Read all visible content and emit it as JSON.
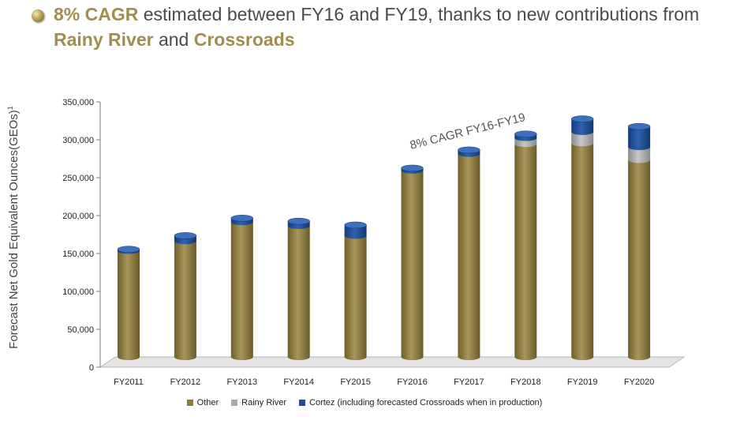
{
  "title": {
    "highlight1": "8% CAGR",
    "text1": " estimated between FY16 and FY19, thanks to new contributions from ",
    "highlight2": "Rainy River",
    "text2": " and ",
    "highlight3": "Crossroads"
  },
  "icons": {
    "bullet": "gold-sphere-bullet-icon"
  },
  "colors": {
    "accent": "#a18d4e",
    "other": "#8f7c3f",
    "rainy_river": "#a8a8a8",
    "cortez": "#1f4e94"
  },
  "chart_data": {
    "type": "bar",
    "stacked": true,
    "three_d": true,
    "categories": [
      "FY2011",
      "FY2012",
      "FY2013",
      "FY2014",
      "FY2015",
      "FY2016",
      "FY2017",
      "FY2018",
      "FY2019",
      "FY2020"
    ],
    "series": [
      {
        "name": "Other",
        "values": [
          140000,
          153000,
          178000,
          173000,
          160000,
          246000,
          268000,
          281000,
          282000,
          260000
        ]
      },
      {
        "name": "Rainy River",
        "values": [
          0,
          0,
          0,
          0,
          0,
          0,
          0,
          8000,
          15000,
          17000
        ]
      },
      {
        "name": "Cortez (including forecasted Crossroads when in production)",
        "values": [
          2000,
          7000,
          5000,
          6000,
          14000,
          3000,
          5000,
          5000,
          17000,
          27000
        ]
      }
    ],
    "ylabel": "Forecast Net Gold Equivalent Ounces(GEOs)",
    "ylabel_superscript": "1",
    "xlabel": "",
    "ylim": [
      0,
      350000
    ],
    "yticks": [
      "0",
      "50,000",
      "100,000",
      "150,000",
      "200,000",
      "250,000",
      "300,000",
      "350,000"
    ],
    "annotation": "8% CAGR FY16-FY19",
    "legend_position": "bottom"
  }
}
